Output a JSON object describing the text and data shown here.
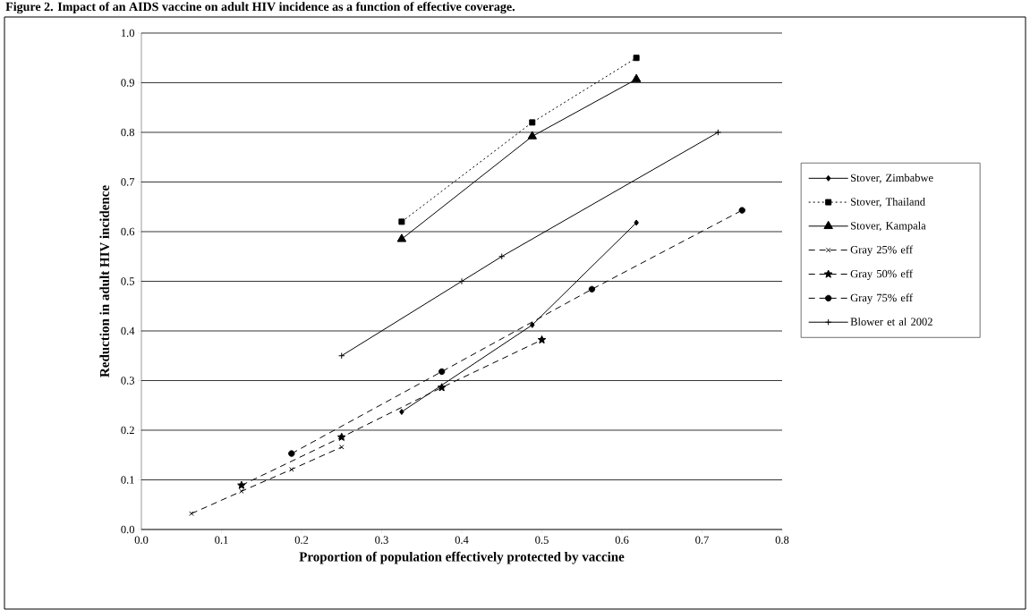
{
  "chart_data": {
    "type": "line",
    "title": "Figure 2. Impact of an AIDS vaccine on adult HIV incidence as a function of effective coverage.",
    "xlabel": "Proportion of population effectively protected by vaccine",
    "ylabel": "Reduction in adult HIV incidence",
    "xlim": [
      0,
      0.8
    ],
    "ylim": [
      0,
      1
    ],
    "xticks": [
      {
        "value": 0,
        "label": "0.0"
      },
      {
        "value": 0.1,
        "label": "0.1"
      },
      {
        "value": 0.2,
        "label": "0.2"
      },
      {
        "value": 0.3,
        "label": "0.3"
      },
      {
        "value": 0.4,
        "label": "0.4"
      },
      {
        "value": 0.5,
        "label": "0.5"
      },
      {
        "value": 0.6,
        "label": "0.6"
      },
      {
        "value": 0.7,
        "label": "0.7"
      },
      {
        "value": 0.8,
        "label": "0.8"
      }
    ],
    "yticks": [
      {
        "value": 0,
        "label": "0.0"
      },
      {
        "value": 0.1,
        "label": "0.1"
      },
      {
        "value": 0.2,
        "label": "0.2"
      },
      {
        "value": 0.3,
        "label": "0.3"
      },
      {
        "value": 0.4,
        "label": "0.4"
      },
      {
        "value": 0.5,
        "label": "0.5"
      },
      {
        "value": 0.6,
        "label": "0.6"
      },
      {
        "value": 0.7,
        "label": "0.7"
      },
      {
        "value": 0.8,
        "label": "0.8"
      },
      {
        "value": 0.9,
        "label": "0.9"
      },
      {
        "value": 1,
        "label": "1.0"
      }
    ],
    "grid": "y",
    "legend": "right",
    "series": [
      {
        "name": "Stover, Zimbabwe",
        "color": "#000000",
        "marker": "diamond",
        "line_style": "solid",
        "x": [
          0.325,
          0.488,
          0.618
        ],
        "values": [
          0.237,
          0.412,
          0.618
        ]
      },
      {
        "name": "Stover, Thailand",
        "color": "#000000",
        "marker": "square",
        "line_style": "dotted",
        "x": [
          0.325,
          0.488,
          0.618
        ],
        "values": [
          0.62,
          0.82,
          0.95
        ]
      },
      {
        "name": "Stover, Kampala",
        "color": "#000000",
        "marker": "triangle",
        "line_style": "solid",
        "x": [
          0.325,
          0.488,
          0.618
        ],
        "values": [
          0.585,
          0.792,
          0.907
        ]
      },
      {
        "name": "Gray 25% eff",
        "color": "#000000",
        "marker": "cross",
        "line_style": "dashed",
        "x": [
          0.0625,
          0.125,
          0.1875,
          0.25
        ],
        "values": [
          0.032,
          0.077,
          0.121,
          0.166
        ]
      },
      {
        "name": "Gray 50% eff",
        "color": "#000000",
        "marker": "star",
        "line_style": "dashed",
        "x": [
          0.125,
          0.25,
          0.375,
          0.5
        ],
        "values": [
          0.089,
          0.186,
          0.286,
          0.382
        ]
      },
      {
        "name": "Gray 75% eff",
        "color": "#000000",
        "marker": "circle",
        "line_style": "dashed",
        "x": [
          0.1875,
          0.375,
          0.5625,
          0.75
        ],
        "values": [
          0.153,
          0.318,
          0.484,
          0.643
        ]
      },
      {
        "name": "Blower et al 2002",
        "color": "#000000",
        "marker": "plus",
        "line_style": "solid",
        "x": [
          0.25,
          0.4,
          0.45,
          0.72
        ],
        "values": [
          0.35,
          0.5,
          0.55,
          0.8
        ]
      }
    ]
  }
}
